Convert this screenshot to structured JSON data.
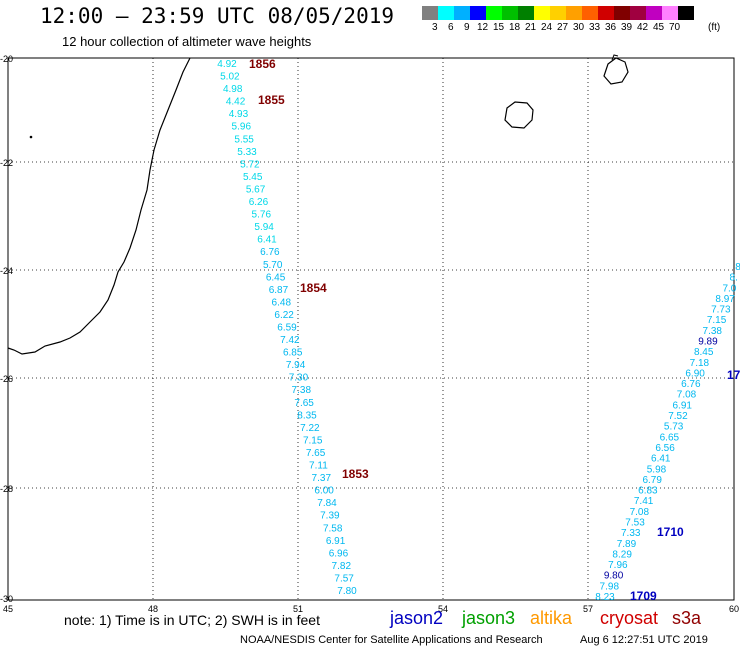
{
  "header": {
    "title": "12:00 – 23:59 UTC 08/05/2019",
    "subtitle": "12 hour collection of altimeter wave heights"
  },
  "legend": {
    "unit": "(ft)",
    "ticks": [
      "3",
      "6",
      "9",
      "12",
      "15",
      "18",
      "21",
      "24",
      "27",
      "30",
      "33",
      "36",
      "39",
      "42",
      "45",
      "70"
    ],
    "colors": [
      "#808080",
      "#00ffff",
      "#00b0ff",
      "#0000ff",
      "#00ff00",
      "#00c000",
      "#008000",
      "#ffff00",
      "#ffd000",
      "#ffa000",
      "#ff6000",
      "#d00000",
      "#800000",
      "#a00040",
      "#c000c0",
      "#ff80ff",
      "#000000"
    ]
  },
  "map": {
    "lat_labels": [
      "-20",
      "-22",
      "-24",
      "-26",
      "-28",
      "-30"
    ],
    "lon_labels": [
      "45",
      "48",
      "51",
      "54",
      "57",
      "60"
    ],
    "passes": [
      {
        "time": "1856",
        "color": "#800000"
      },
      {
        "time": "1855",
        "color": "#800000"
      },
      {
        "time": "1854",
        "color": "#800000"
      },
      {
        "time": "1853",
        "color": "#800000"
      },
      {
        "time": "1710",
        "color": "#0000c0"
      },
      {
        "time": "1709",
        "color": "#0000c0"
      },
      {
        "time": "17",
        "color": "#0000c0"
      }
    ],
    "track1": [
      "4.92",
      "5.02",
      "4.98",
      "4.42",
      "4.93",
      "5.96",
      "5.55",
      "5.33",
      "5.72",
      "5.45",
      "5.67",
      "6.26",
      "5.76",
      "5.94",
      "6.41",
      "6.76",
      "5.70",
      "6.45",
      "6.87",
      "6.48",
      "6.22",
      "6.59",
      "7.42",
      "6.85",
      "7.94",
      "7.30",
      "7.38",
      "7.65",
      "8.35",
      "7.22",
      "7.15",
      "7.65",
      "7.11",
      "7.37",
      "6.00",
      "7.84",
      "7.39",
      "7.58",
      "6.91",
      "6.96",
      "7.82",
      "7.57",
      "7.80"
    ],
    "track2": [
      "8.23",
      "7.98",
      "9.80",
      "7.96",
      "8.29",
      "7.89",
      "7.33",
      "7.53",
      "7.08",
      "7.41",
      "6.83",
      "6.79",
      "5.98",
      "6.41",
      "6.56",
      "6.65",
      "5.73",
      "7.52",
      "6.91",
      "7.08",
      "6.76",
      "6.90",
      "7.18",
      "8.45",
      "9.89",
      "7.38",
      "7.15",
      "7.73",
      "8.97",
      "7.0",
      "8.",
      "8"
    ]
  },
  "footer": {
    "note": "note:  1) Time is in UTC;  2) SWH is in feet",
    "satellites": [
      {
        "name": "jason2",
        "color": "#0000c0"
      },
      {
        "name": "jason3",
        "color": "#00a000"
      },
      {
        "name": "altika",
        "color": "#ff9900"
      },
      {
        "name": "cryosat",
        "color": "#d00000"
      },
      {
        "name": "s3a",
        "color": "#900000"
      }
    ],
    "credit": "NOAA/NESDIS Center for Satellite Applications and Research",
    "timestamp": "Aug  6 12:27:51 UTC 2019"
  }
}
